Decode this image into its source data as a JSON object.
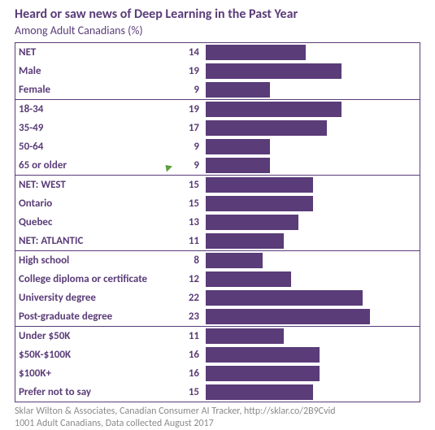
{
  "title": "Heard or saw news of Deep Learning in the Past Year",
  "subtitle": "Among Adult Canadians (%)",
  "style": {
    "title_color": "#5a3c78",
    "title_fontsize": 16,
    "subtitle_color": "#5a3c78",
    "subtitle_fontsize": 14,
    "label_color": "#5a3c78",
    "label_fontsize": 13,
    "bar_color": "#5a3c78",
    "border_color": "#5a3c78",
    "footer_color": "#8a8a8a",
    "footer_fontsize": 12,
    "bar_max_value": 30
  },
  "groups": [
    {
      "rows": [
        {
          "label": "NET",
          "value": 14,
          "marker": false
        },
        {
          "label": "Male",
          "value": 19,
          "marker": false
        },
        {
          "label": "Female",
          "value": 9,
          "marker": false
        }
      ]
    },
    {
      "rows": [
        {
          "label": "18-34",
          "value": 19,
          "marker": false
        },
        {
          "label": "35-49",
          "value": 17,
          "marker": false
        },
        {
          "label": "50-64",
          "value": 9,
          "marker": false
        },
        {
          "label": "65 or older",
          "value": 9,
          "marker": true
        }
      ]
    },
    {
      "rows": [
        {
          "label": "NET: WEST",
          "value": 15,
          "marker": false
        },
        {
          "label": "Ontario",
          "value": 15,
          "marker": false
        },
        {
          "label": "Quebec",
          "value": 13,
          "marker": false
        },
        {
          "label": "NET: ATLANTIC",
          "value": 11,
          "marker": false
        }
      ]
    },
    {
      "rows": [
        {
          "label": "High school",
          "value": 8,
          "marker": false
        },
        {
          "label": "College diploma or certificate",
          "value": 12,
          "marker": false
        },
        {
          "label": "University degree",
          "value": 22,
          "marker": false
        },
        {
          "label": "Post-graduate degree",
          "value": 23,
          "marker": false
        }
      ]
    },
    {
      "rows": [
        {
          "label": "Under $50K",
          "value": 11,
          "marker": false
        },
        {
          "label": "$50K-$100K",
          "value": 16,
          "marker": false
        },
        {
          "label": "$100K+",
          "value": 16,
          "marker": false
        },
        {
          "label": "Prefer not to say",
          "value": 15,
          "marker": false
        }
      ]
    }
  ],
  "footer_line1": "Sklar Wilton & Associates, Canadian Consumer AI Tracker, http://sklar.co/2B9Cvid",
  "footer_line2": "1001 Adult Canadians, Data collected August 2017"
}
